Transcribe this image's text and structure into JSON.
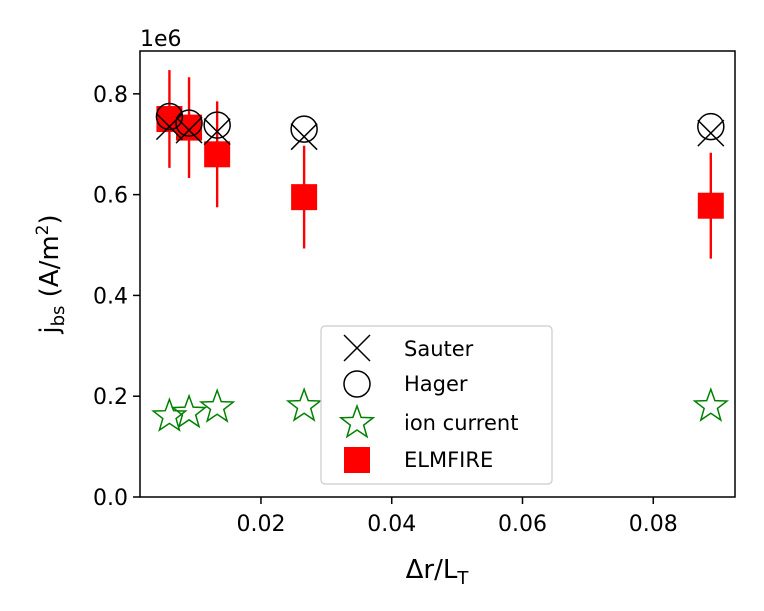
{
  "chart_data": {
    "type": "scatter",
    "xlabel_main": "Δr/L",
    "xlabel_sub": "T",
    "ylabel_main": "j",
    "ylabel_sub": "bs",
    "ylabel_rest": " (A/m",
    "ylabel_sup": "2",
    "ylabel_end": ")",
    "y_offset_label": "1e6",
    "xlim": [
      0.0015,
      0.0925
    ],
    "ylim": [
      0,
      885000
    ],
    "xticks": [
      0.02,
      0.04,
      0.06,
      0.08
    ],
    "xtick_labels": [
      "0.02",
      "0.04",
      "0.06",
      "0.08"
    ],
    "yticks": [
      0,
      200000,
      400000,
      600000,
      800000
    ],
    "ytick_labels": [
      "0.0",
      "0.2",
      "0.4",
      "0.6",
      "0.8"
    ],
    "legend_position": "lower-center",
    "series": [
      {
        "name": "Sauter",
        "marker": "x",
        "color": "#000000",
        "x": [
          0.006,
          0.009,
          0.0133,
          0.0266,
          0.0888
        ],
        "y": [
          735000,
          728000,
          725000,
          715000,
          722000
        ]
      },
      {
        "name": "Hager",
        "marker": "circle-open",
        "color": "#000000",
        "x": [
          0.006,
          0.009,
          0.0133,
          0.0266,
          0.0888
        ],
        "y": [
          755000,
          742000,
          738000,
          730000,
          735000
        ]
      },
      {
        "name": "ion current",
        "marker": "star-open",
        "color": "#008000",
        "x": [
          0.006,
          0.009,
          0.0133,
          0.0266,
          0.0888
        ],
        "y": [
          160000,
          167000,
          178000,
          180000,
          180000
        ]
      },
      {
        "name": "ELMFIRE",
        "marker": "square",
        "color": "#ff0000",
        "x": [
          0.006,
          0.009,
          0.0133,
          0.0266,
          0.0888
        ],
        "y": [
          750000,
          733000,
          680000,
          595000,
          578000
        ],
        "yerr": [
          97000,
          100000,
          105000,
          102000,
          105000
        ]
      }
    ]
  }
}
